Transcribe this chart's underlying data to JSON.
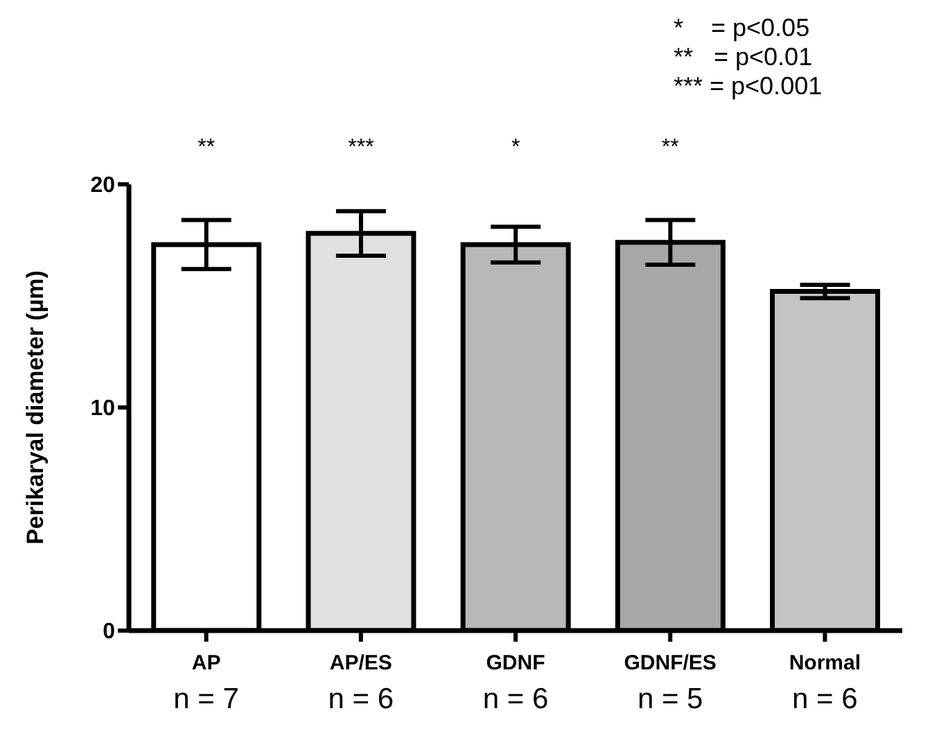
{
  "chart_data": {
    "type": "bar",
    "ylabel": "Perikaryal diameter (µm)",
    "categories": [
      "AP\nn = 7",
      "AP/ES\nn = 6",
      "GDNF\nn = 6",
      "GDNF/ES\nn = 5",
      "Normal\nn = 6"
    ],
    "values": [
      17.3,
      17.8,
      17.3,
      17.4,
      15.2
    ],
    "errors": [
      1.1,
      1.0,
      0.8,
      1.0,
      0.3
    ],
    "colors": [
      "#ffffff",
      "#e0e0e0",
      "#b8b8b8",
      "#a8a8a8",
      "#c4c4c4"
    ],
    "ylim": [
      0,
      20
    ],
    "yticks": [
      0,
      10,
      20
    ],
    "grid": false,
    "legend": false,
    "value_labels": [
      "**",
      "***",
      "*",
      "**",
      null
    ],
    "annotations": [
      "*    = p<0.05",
      "**   = p<0.01",
      "*** = p<0.001"
    ]
  }
}
